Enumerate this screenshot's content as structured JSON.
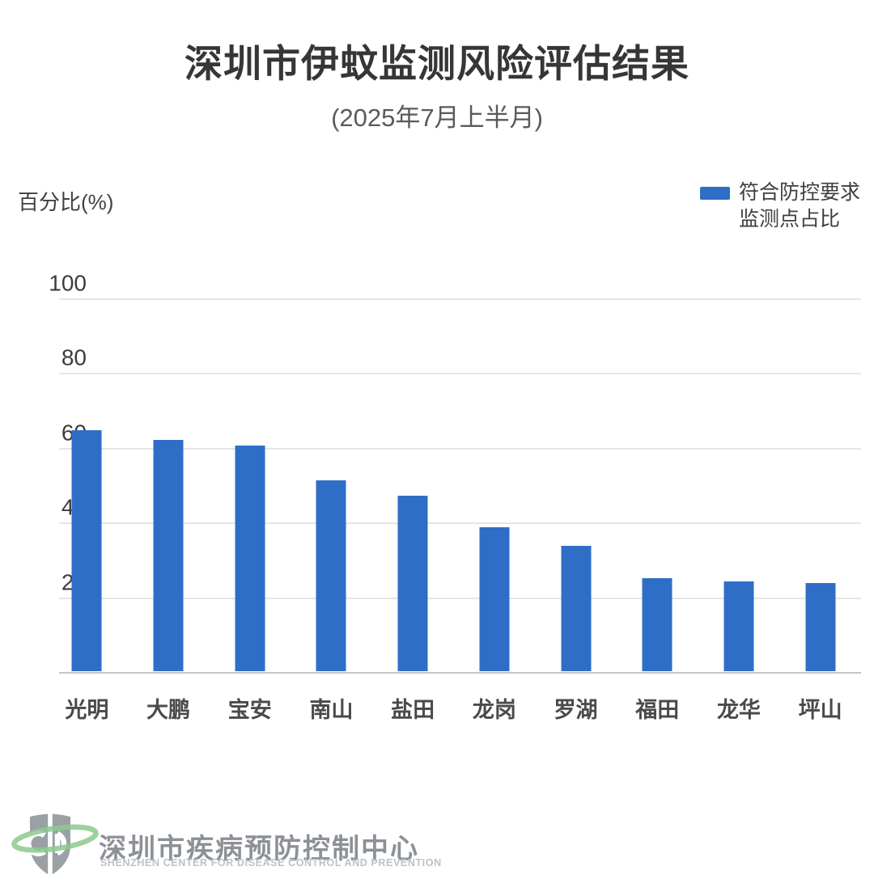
{
  "title": "深圳市伊蚊监测风险评估结果",
  "subtitle": "(2025年7月上半月)",
  "y_axis_title": "百分比(%)",
  "legend": {
    "label_line1": "符合防控要求",
    "label_line2": "监测点占比",
    "swatch_color": "#2f6ec6"
  },
  "footer": {
    "org_cn": "深圳市疾病预防控制中心",
    "org_en": "SHENZHEN CENTER FOR DISEASE CONTROL AND PREVENTION",
    "logo_gray": "#9aa0a4",
    "logo_green": "#8dc98d"
  },
  "chart_data": {
    "type": "bar",
    "title": "深圳市伊蚊监测风险评估结果",
    "subtitle": "(2025年7月上半月)",
    "categories": [
      "光明",
      "大鹏",
      "宝安",
      "南山",
      "盐田",
      "龙岗",
      "罗湖",
      "福田",
      "龙华",
      "坪山"
    ],
    "series": [
      {
        "name": "符合防控要求监测点占比",
        "values": [
          64.5,
          62.0,
          60.5,
          51.0,
          47.0,
          38.5,
          33.5,
          25.0,
          24.0,
          23.5
        ]
      }
    ],
    "xlabel": "",
    "ylabel": "百分比(%)",
    "ylim": [
      0,
      100
    ],
    "yticks": [
      0,
      20,
      40,
      60,
      80,
      100
    ],
    "bar_color": "#2f6ec6",
    "gridline_color": "#e5e5e5",
    "baseline_color": "#c7c7c7",
    "grid": true,
    "legend_position": "top-right"
  }
}
